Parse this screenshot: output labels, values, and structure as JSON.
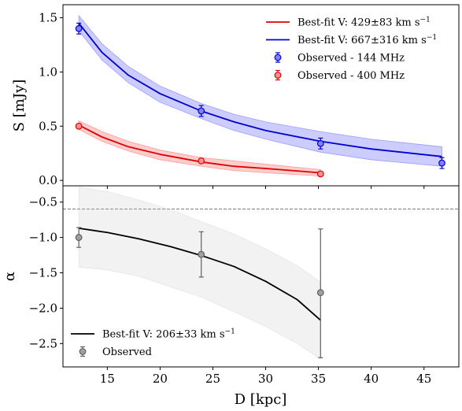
{
  "chart_data": [
    {
      "type": "line",
      "panel": "top",
      "ylabel": "S [mJy]",
      "xlim": [
        10.8,
        48.3
      ],
      "ylim": [
        -0.05,
        1.62
      ],
      "xticks": [
        15,
        20,
        25,
        30,
        35,
        40,
        45
      ],
      "yticks": [
        0.0,
        0.5,
        1.0,
        1.5
      ],
      "ytick_labels": [
        "0.0",
        "0.5",
        "1.0",
        "1.5"
      ],
      "legend_position": "top-right",
      "series": [
        {
          "name": "Observed - 144 MHz",
          "kind": "points",
          "color": "#0000cc",
          "face": "#8080ff",
          "x": [
            12.3,
            23.9,
            35.2,
            46.7
          ],
          "y": [
            1.4,
            0.64,
            0.34,
            0.16
          ],
          "err": [
            0.05,
            0.05,
            0.05,
            0.05
          ]
        },
        {
          "name": "Observed - 400 MHz",
          "kind": "points",
          "color": "#dd0000",
          "face": "#ff9090",
          "x": [
            12.3,
            23.9,
            35.2
          ],
          "y": [
            0.5,
            0.18,
            0.06
          ],
          "err": [
            0.02,
            0.02,
            0.02
          ]
        },
        {
          "name": "Best-fit V: 667±316 km s^-1",
          "kind": "curve",
          "color": "#0000cc",
          "band_color": "#0000ff",
          "x": [
            12.3,
            14.5,
            17,
            20,
            23.9,
            27,
            30,
            35.2,
            40,
            46.7
          ],
          "y": [
            1.45,
            1.18,
            0.97,
            0.8,
            0.64,
            0.54,
            0.46,
            0.36,
            0.29,
            0.22
          ],
          "lower": [
            1.38,
            1.11,
            0.9,
            0.72,
            0.57,
            0.46,
            0.38,
            0.26,
            0.19,
            0.13
          ],
          "upper": [
            1.52,
            1.26,
            1.05,
            0.87,
            0.71,
            0.61,
            0.54,
            0.45,
            0.38,
            0.31
          ]
        },
        {
          "name": "Best-fit V: 429±83 km s^-1",
          "kind": "curve",
          "color": "#dd0000",
          "band_color": "#ff0000",
          "x": [
            12.3,
            14.5,
            17,
            20,
            23.9,
            27,
            30,
            35.2
          ],
          "y": [
            0.51,
            0.4,
            0.31,
            0.24,
            0.17,
            0.13,
            0.11,
            0.07
          ],
          "lower": [
            0.47,
            0.36,
            0.27,
            0.19,
            0.13,
            0.09,
            0.07,
            0.04
          ],
          "upper": [
            0.55,
            0.45,
            0.36,
            0.28,
            0.21,
            0.18,
            0.15,
            0.1
          ]
        }
      ],
      "legend": [
        {
          "label": "Best-fit V: 429±83 km s",
          "sup": "−1",
          "kind": "line",
          "color": "#dd0000"
        },
        {
          "label": "Best-fit V: 667±316 km s",
          "sup": "−1",
          "kind": "line",
          "color": "#0000cc"
        },
        {
          "label": "Observed - 144 MHz",
          "kind": "marker",
          "color": "#0000cc",
          "face": "#8080ff"
        },
        {
          "label": "Observed - 400 MHz",
          "kind": "marker",
          "color": "#dd0000",
          "face": "#ff9090"
        }
      ]
    },
    {
      "type": "line",
      "panel": "bottom",
      "xlabel": "D [kpc]",
      "ylabel": "α",
      "xlim": [
        10.8,
        48.3
      ],
      "ylim": [
        -2.83,
        -0.27
      ],
      "xticks": [
        15,
        20,
        25,
        30,
        35,
        40,
        45
      ],
      "xtick_labels": [
        "15",
        "20",
        "25",
        "30",
        "35",
        "40",
        "45"
      ],
      "yticks": [
        -0.5,
        -1.0,
        -1.5,
        -2.0,
        -2.5
      ],
      "ytick_labels": [
        "−0.5",
        "−1.0",
        "−1.5",
        "−2.0",
        "−2.5"
      ],
      "reference_line": -0.6,
      "legend_position": "bottom-left",
      "series": [
        {
          "name": "Observed",
          "kind": "points",
          "color": "#606060",
          "face": "#a0a0a0",
          "x": [
            12.3,
            23.9,
            35.2
          ],
          "y": [
            -1.0,
            -1.24,
            -1.78
          ],
          "err_lo": [
            0.14,
            0.32,
            0.92
          ],
          "err_hi": [
            0.14,
            0.32,
            0.9
          ]
        },
        {
          "name": "Best-fit V: 206±33 km s^-1",
          "kind": "curve",
          "color": "#000000",
          "band_color": "#bfbfbf",
          "x": [
            12.3,
            15,
            18,
            21,
            24,
            27,
            30,
            33,
            35.2
          ],
          "y": [
            -0.87,
            -0.93,
            -1.02,
            -1.13,
            -1.26,
            -1.41,
            -1.62,
            -1.88,
            -2.17
          ],
          "lower": [
            -1.42,
            -1.46,
            -1.55,
            -1.7,
            -1.85,
            -2.05,
            -2.26,
            -2.5,
            -2.72
          ],
          "upper": [
            -0.29,
            -0.35,
            -0.47,
            -0.61,
            -0.78,
            -0.95,
            -1.16,
            -1.4,
            -1.63
          ]
        }
      ],
      "legend": [
        {
          "label": "Best-fit V: 206±33 km s",
          "sup": "−1",
          "kind": "line",
          "color": "#000000"
        },
        {
          "label": "Observed",
          "kind": "marker",
          "color": "#606060",
          "face": "#a0a0a0"
        }
      ]
    }
  ]
}
